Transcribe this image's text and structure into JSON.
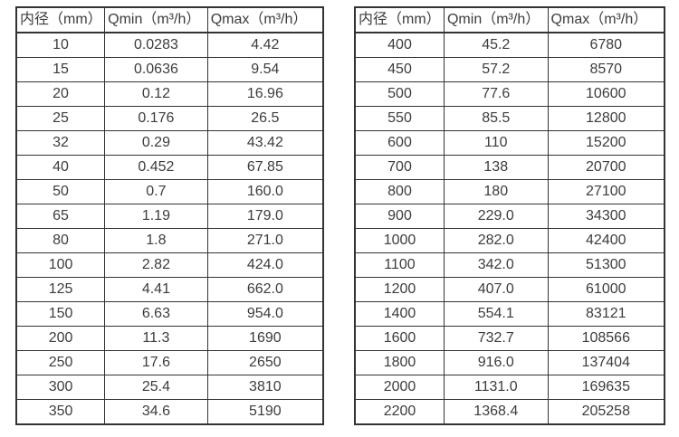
{
  "page": {
    "background_color": "#ffffff",
    "text_color": "#3c3c3c",
    "border_color": "#333333"
  },
  "tables": [
    {
      "name": "flow-range-small-diameters",
      "headers": [
        "内径（mm）",
        "Qmin（m³/h）",
        "Qmax（m³/h）"
      ],
      "rows": [
        [
          "10",
          "0.0283",
          "4.42"
        ],
        [
          "15",
          "0.0636",
          "9.54"
        ],
        [
          "20",
          "0.12",
          "16.96"
        ],
        [
          "25",
          "0.176",
          "26.5"
        ],
        [
          "32",
          "0.29",
          "43.42"
        ],
        [
          "40",
          "0.452",
          "67.85"
        ],
        [
          "50",
          "0.7",
          "160.0"
        ],
        [
          "65",
          "1.19",
          "179.0"
        ],
        [
          "80",
          "1.8",
          "271.0"
        ],
        [
          "100",
          "2.82",
          "424.0"
        ],
        [
          "125",
          "4.41",
          "662.0"
        ],
        [
          "150",
          "6.63",
          "954.0"
        ],
        [
          "200",
          "11.3",
          "1690"
        ],
        [
          "250",
          "17.6",
          "2650"
        ],
        [
          "300",
          "25.4",
          "3810"
        ],
        [
          "350",
          "34.6",
          "5190"
        ]
      ]
    },
    {
      "name": "flow-range-large-diameters",
      "headers": [
        "内径（mm）",
        "Qmin（m³/h）",
        "Qmax（m³/h）"
      ],
      "rows": [
        [
          "400",
          "45.2",
          "6780"
        ],
        [
          "450",
          "57.2",
          "8570"
        ],
        [
          "500",
          "77.6",
          "10600"
        ],
        [
          "550",
          "85.5",
          "12800"
        ],
        [
          "600",
          "110",
          "15200"
        ],
        [
          "700",
          "138",
          "20700"
        ],
        [
          "800",
          "180",
          "27100"
        ],
        [
          "900",
          "229.0",
          "34300"
        ],
        [
          "1000",
          "282.0",
          "42400"
        ],
        [
          "1100",
          "342.0",
          "51300"
        ],
        [
          "1200",
          "407.0",
          "61000"
        ],
        [
          "1400",
          "554.1",
          "83121"
        ],
        [
          "1600",
          "732.7",
          "108566"
        ],
        [
          "1800",
          "916.0",
          "137404"
        ],
        [
          "2000",
          "1131.0",
          "169635"
        ],
        [
          "2200",
          "1368.4",
          "205258"
        ]
      ]
    }
  ]
}
